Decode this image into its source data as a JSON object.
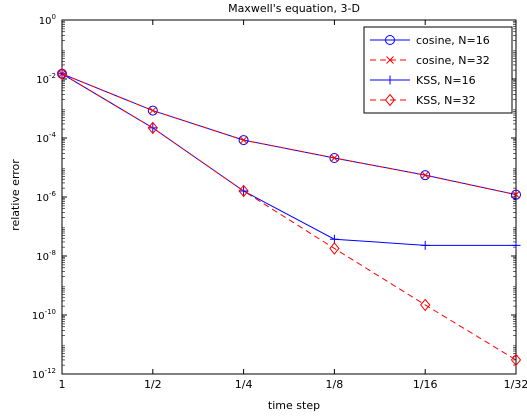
{
  "chart_data": {
    "type": "line",
    "title": "Maxwell's equation, 3-D",
    "xlabel": "time step",
    "ylabel": "relative error",
    "x_ticks": [
      "1",
      "1/2",
      "1/4",
      "1/8",
      "1/16",
      "1/32"
    ],
    "x": [
      1,
      0.5,
      0.25,
      0.125,
      0.0625,
      0.03125
    ],
    "x_scale": "log",
    "y_scale": "log",
    "ylim": [
      1e-12,
      1
    ],
    "y_ticks": [
      {
        "value": 1,
        "base": "10",
        "exp": "0"
      },
      {
        "value": 0.01,
        "base": "10",
        "exp": "-2"
      },
      {
        "value": 0.0001,
        "base": "10",
        "exp": "-4"
      },
      {
        "value": 1e-06,
        "base": "10",
        "exp": "-6"
      },
      {
        "value": 1e-08,
        "base": "10",
        "exp": "-8"
      },
      {
        "value": 1e-10,
        "base": "10",
        "exp": "-10"
      },
      {
        "value": 1e-12,
        "base": "10",
        "exp": "-12"
      }
    ],
    "grid": false,
    "legend_position": "top-right",
    "series": [
      {
        "name": "cosine, N=16",
        "color": "#0000ff",
        "line_style": "solid",
        "marker": "circle",
        "values": [
          0.015,
          0.00085,
          8.5e-05,
          2.1e-05,
          5.5e-06,
          1.2e-06
        ]
      },
      {
        "name": "cosine, N=32",
        "color": "#ff0000",
        "line_style": "dashed",
        "marker": "x",
        "values": [
          0.015,
          0.00085,
          8.5e-05,
          2.1e-05,
          5.5e-06,
          1.2e-06
        ]
      },
      {
        "name": "KSS, N=16",
        "color": "#0000ff",
        "line_style": "solid",
        "marker": "plus",
        "values": [
          0.015,
          0.00022,
          1.6e-06,
          3.7e-08,
          2.3e-08,
          2.3e-08
        ]
      },
      {
        "name": "KSS, N=32",
        "color": "#ff0000",
        "line_style": "dashed",
        "marker": "diamond",
        "values": [
          0.015,
          0.00022,
          1.6e-06,
          1.8e-08,
          2.2e-10,
          3e-12
        ]
      }
    ]
  }
}
